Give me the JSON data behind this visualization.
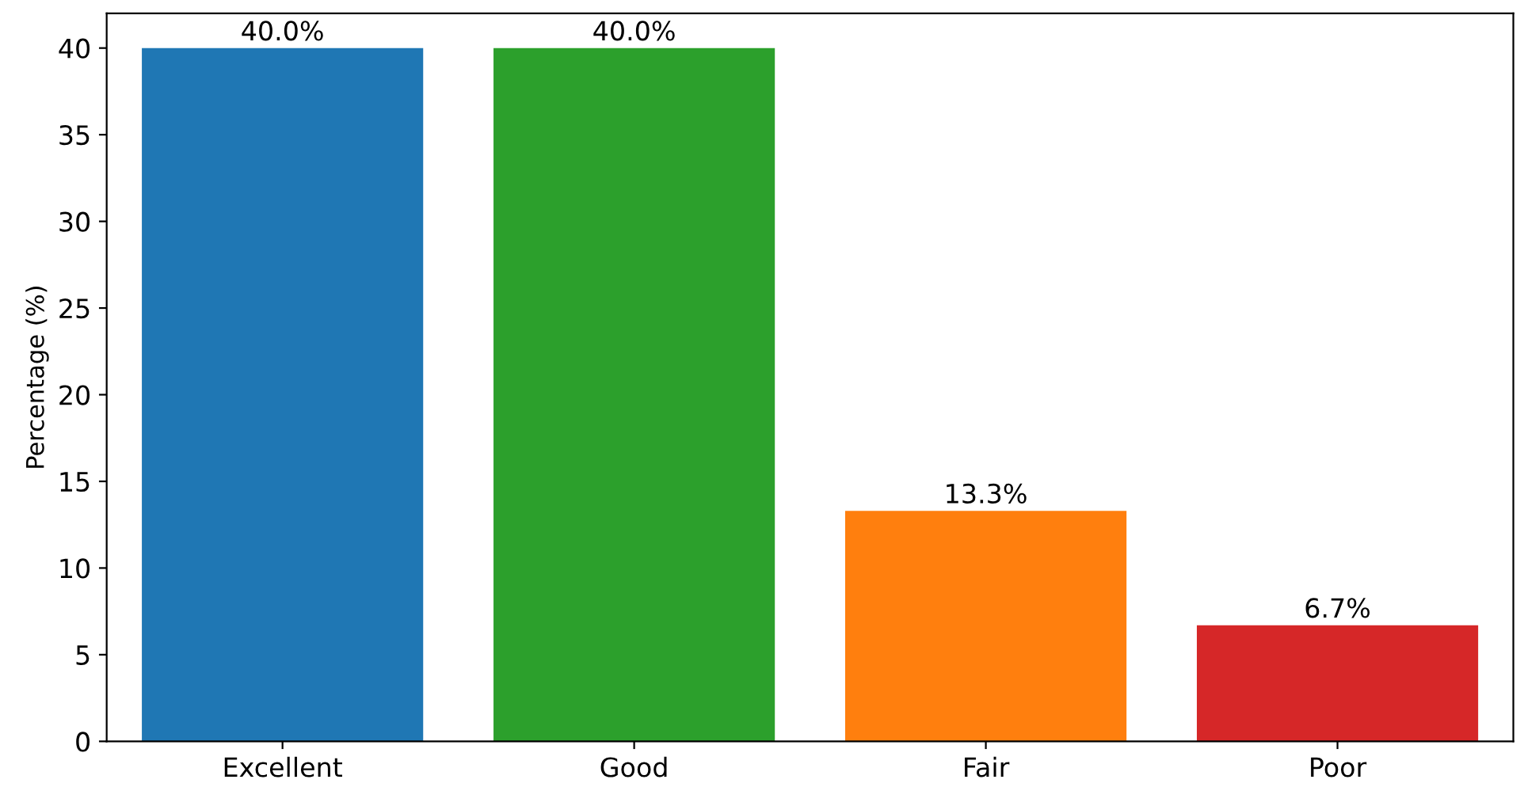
{
  "chart_data": {
    "type": "bar",
    "ylabel": "Percentage (%)",
    "categories": [
      "Excellent",
      "Good",
      "Fair",
      "Poor"
    ],
    "values": [
      40.0,
      40.0,
      13.3,
      6.7
    ],
    "colors": [
      "#1f77b4",
      "#2ca02c",
      "#ff7f0e",
      "#d62728"
    ],
    "value_labels": [
      "40.0%",
      "40.0%",
      "13.3%",
      "6.7%"
    ],
    "ylim": [
      0,
      42
    ],
    "yticks": [
      0,
      5,
      10,
      15,
      20,
      25,
      30,
      35,
      40
    ],
    "grid": false
  }
}
